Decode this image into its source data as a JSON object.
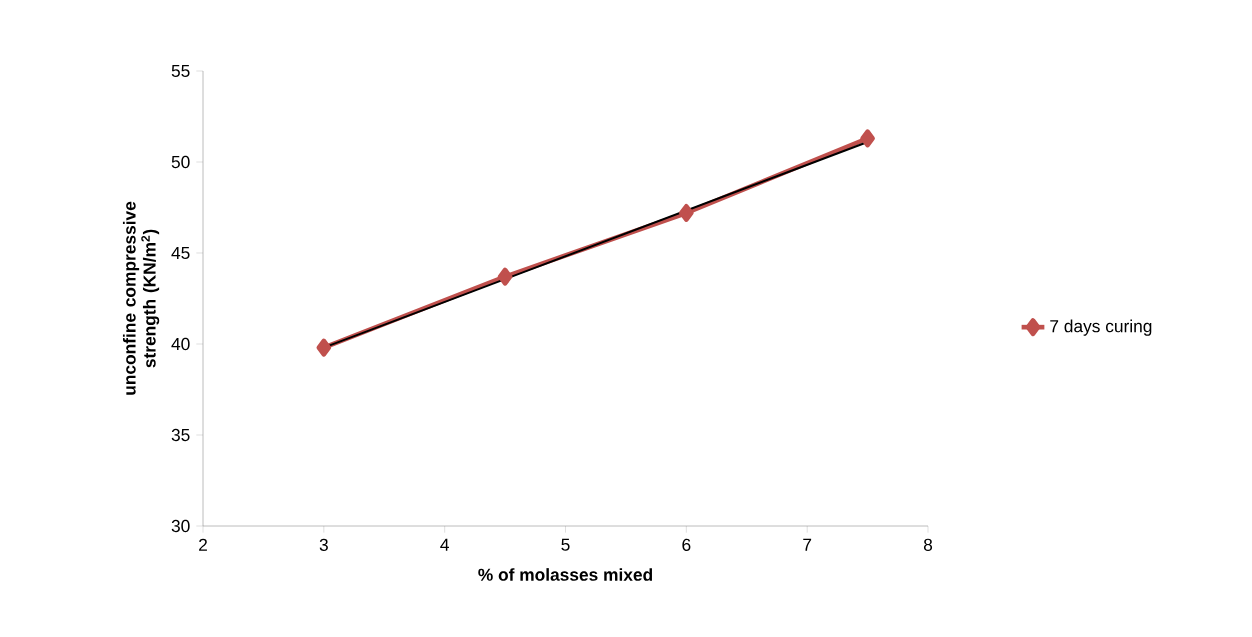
{
  "chart_data": {
    "type": "line",
    "xlabel": "% of molasses mixed",
    "ylabel": "unconfine compressive strength (KN/m$^{2}$)",
    "xlim": [
      2,
      8
    ],
    "xticks": [
      2,
      3,
      4,
      5,
      6,
      7,
      8
    ],
    "ylim": [
      30,
      55
    ],
    "yticks": [
      30,
      35,
      40,
      45,
      50,
      55
    ],
    "grid": false,
    "legend": "right",
    "series": [
      {
        "name": "7 days curing",
        "color": "#c0504d",
        "marker": "diamond",
        "x": [
          3,
          4.5,
          6,
          7.5
        ],
        "values": [
          39.8,
          43.7,
          47.2,
          51.3
        ]
      },
      {
        "color": "#000000",
        "marker": "none",
        "x": [
          3,
          7.5
        ],
        "values": [
          39.8,
          51.1
        ]
      }
    ]
  }
}
